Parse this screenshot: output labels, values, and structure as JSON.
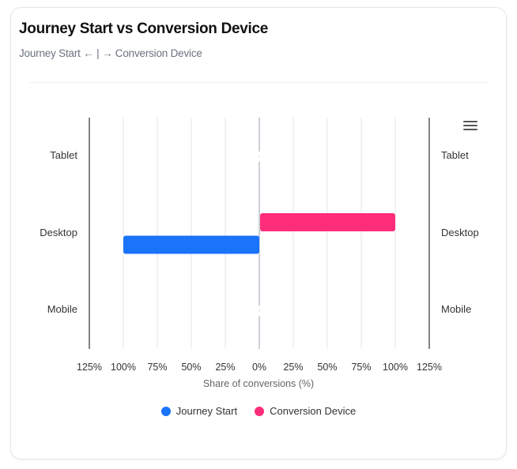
{
  "header": {
    "title": "Journey Start vs Conversion Device",
    "subtitle": "Journey Start ← | → Conversion Device"
  },
  "colors": {
    "journey_start": "#1a73fb",
    "conversion_device": "#ff2d7a",
    "grid": "#e5e5e5",
    "axis": "#333333",
    "center_line": "#9ca3af"
  },
  "menu": {
    "icon": "hamburger-menu-icon"
  },
  "chart_data": {
    "type": "bar",
    "orientation": "horizontal",
    "layout": "diverging",
    "title": "Journey Start vs Conversion Device",
    "subtitle": "Journey Start ← | → Conversion Device",
    "categories": [
      "Tablet",
      "Desktop",
      "Mobile"
    ],
    "series": [
      {
        "name": "Journey Start",
        "direction": "left",
        "values": [
          0,
          100,
          0
        ]
      },
      {
        "name": "Conversion Device",
        "direction": "right",
        "values": [
          0,
          100,
          0
        ]
      }
    ],
    "xlabel": "Share of conversions (%)",
    "ylabel": "",
    "xlim": [
      -125,
      125
    ],
    "x_ticks": [
      "125%",
      "100%",
      "75%",
      "50%",
      "25%",
      "0%",
      "25%",
      "50%",
      "75%",
      "100%",
      "125%"
    ],
    "grid": true,
    "legend_position": "bottom"
  },
  "legend": [
    {
      "label": "Journey Start"
    },
    {
      "label": "Conversion Device"
    }
  ]
}
